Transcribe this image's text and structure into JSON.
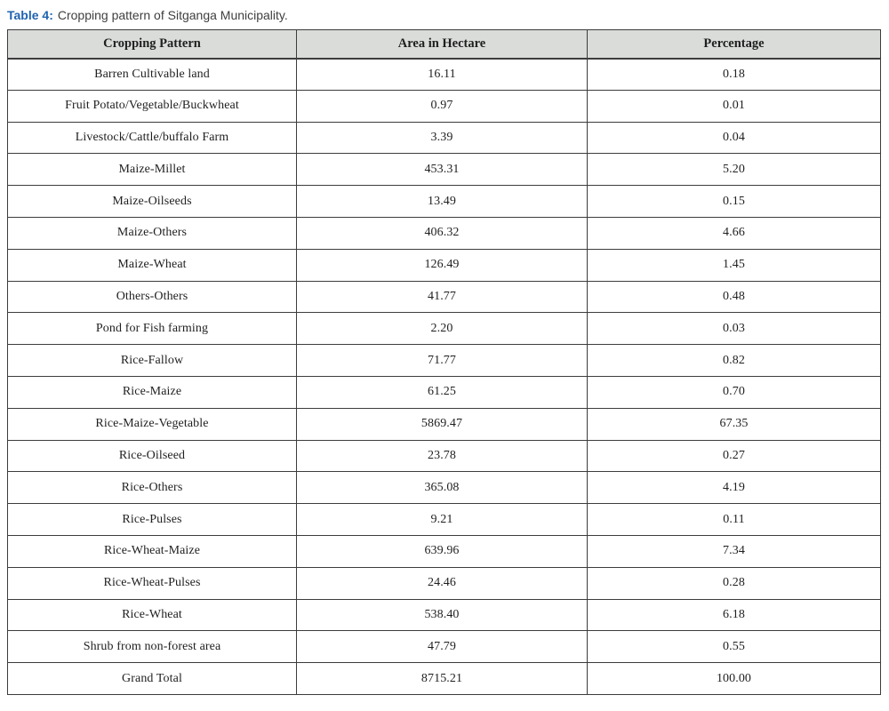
{
  "caption": {
    "label": "Table 4:",
    "text": "Cropping pattern of Sitganga Municipality."
  },
  "table": {
    "columns": [
      "Cropping Pattern",
      "Area in Hectare",
      "Percentage"
    ],
    "rows": [
      [
        "Barren Cultivable land",
        "16.11",
        "0.18"
      ],
      [
        "Fruit Potato/Vegetable/Buckwheat",
        "0.97",
        "0.01"
      ],
      [
        "Livestock/Cattle/buffalo Farm",
        "3.39",
        "0.04"
      ],
      [
        "Maize-Millet",
        "453.31",
        "5.20"
      ],
      [
        "Maize-Oilseeds",
        "13.49",
        "0.15"
      ],
      [
        "Maize-Others",
        "406.32",
        "4.66"
      ],
      [
        "Maize-Wheat",
        "126.49",
        "1.45"
      ],
      [
        "Others-Others",
        "41.77",
        "0.48"
      ],
      [
        "Pond for Fish farming",
        "2.20",
        "0.03"
      ],
      [
        "Rice-Fallow",
        "71.77",
        "0.82"
      ],
      [
        "Rice-Maize",
        "61.25",
        "0.70"
      ],
      [
        "Rice-Maize-Vegetable",
        "5869.47",
        "67.35"
      ],
      [
        "Rice-Oilseed",
        "23.78",
        "0.27"
      ],
      [
        "Rice-Others",
        "365.08",
        "4.19"
      ],
      [
        "Rice-Pulses",
        "9.21",
        "0.11"
      ],
      [
        "Rice-Wheat-Maize",
        "639.96",
        "7.34"
      ],
      [
        "Rice-Wheat-Pulses",
        "24.46",
        "0.28"
      ],
      [
        "Rice-Wheat",
        "538.40",
        "6.18"
      ],
      [
        "Shrub from non-forest area",
        "47.79",
        "0.55"
      ],
      [
        "Grand Total",
        "8715.21",
        "100.00"
      ]
    ]
  },
  "chart_data": {
    "type": "table",
    "title": "Table 4: Cropping pattern of Sitganga Municipality.",
    "columns": [
      "Cropping Pattern",
      "Area in Hectare",
      "Percentage"
    ],
    "categories": [
      "Barren Cultivable land",
      "Fruit Potato/Vegetable/Buckwheat",
      "Livestock/Cattle/buffalo Farm",
      "Maize-Millet",
      "Maize-Oilseeds",
      "Maize-Others",
      "Maize-Wheat",
      "Others-Others",
      "Pond for Fish farming",
      "Rice-Fallow",
      "Rice-Maize",
      "Rice-Maize-Vegetable",
      "Rice-Oilseed",
      "Rice-Others",
      "Rice-Pulses",
      "Rice-Wheat-Maize",
      "Rice-Wheat-Pulses",
      "Rice-Wheat",
      "Shrub from non-forest area",
      "Grand Total"
    ],
    "series": [
      {
        "name": "Area in Hectare",
        "values": [
          16.11,
          0.97,
          3.39,
          453.31,
          13.49,
          406.32,
          126.49,
          41.77,
          2.2,
          71.77,
          61.25,
          5869.47,
          23.78,
          365.08,
          9.21,
          639.96,
          24.46,
          538.4,
          47.79,
          8715.21
        ]
      },
      {
        "name": "Percentage",
        "values": [
          0.18,
          0.01,
          0.04,
          5.2,
          0.15,
          4.66,
          1.45,
          0.48,
          0.03,
          0.82,
          0.7,
          67.35,
          0.27,
          4.19,
          0.11,
          7.34,
          0.28,
          6.18,
          0.55,
          100.0
        ]
      }
    ]
  },
  "colors": {
    "title_accent": "#1f63b0",
    "header_bg": "#d9dcd9",
    "border": "#3c3c3c",
    "text": "#1f1f1f",
    "caption_text": "#3f3f3f"
  }
}
